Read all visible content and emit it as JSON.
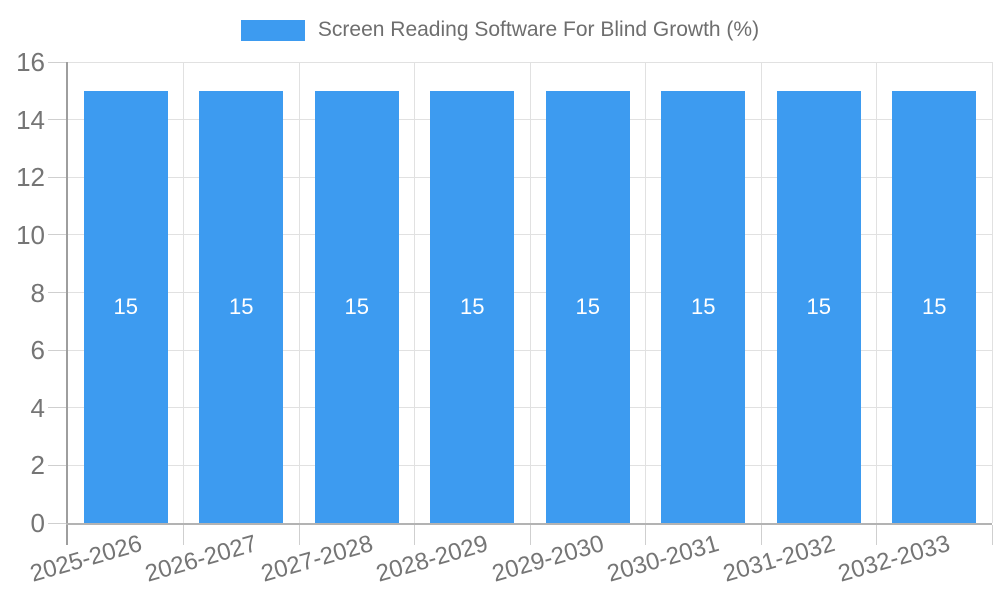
{
  "chart_data": {
    "type": "bar",
    "title": "Screen Reading Software For Blind Growth (%)",
    "categories": [
      "2025-2026",
      "2026-2027",
      "2027-2028",
      "2028-2029",
      "2029-2030",
      "2030-2031",
      "2031-2032",
      "2032-2033"
    ],
    "values": [
      15,
      15,
      15,
      15,
      15,
      15,
      15,
      15
    ],
    "bar_labels": [
      "15",
      "15",
      "15",
      "15",
      "15",
      "15",
      "15",
      "15"
    ],
    "xlabel": "",
    "ylabel": "",
    "ylim": [
      0,
      16
    ],
    "yticks": [
      0,
      2,
      4,
      6,
      8,
      10,
      12,
      14,
      16
    ],
    "ytick_labels": [
      "0",
      "2",
      "4",
      "6",
      "8",
      "10",
      "12",
      "14",
      "16"
    ],
    "grid": true,
    "legend_position": "top",
    "colors": {
      "bar": "#3D9BF0",
      "bar_label": "#FFFFFF",
      "title_text": "#6E6E6E",
      "axis_label": "#757575",
      "gridline": "#E1E1E1",
      "tick_mark": "#CFCFCF",
      "y_axis_line": "#9E9E9E",
      "x_axis_line": "#B3B3B3"
    }
  }
}
